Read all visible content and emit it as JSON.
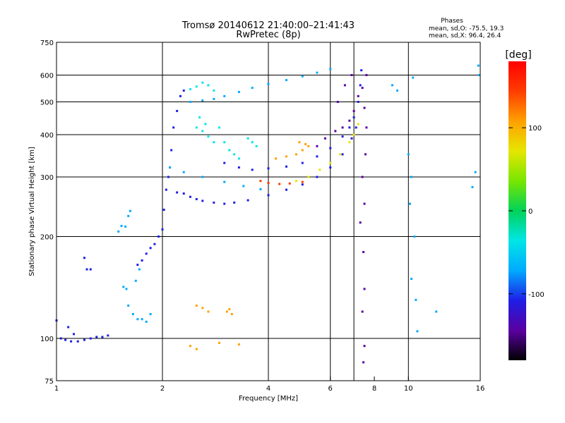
{
  "header": {
    "title": "Tromsø 20140612 21:40:00–21:41:43",
    "subtitle": "RwPretec (8p)",
    "stats_heading": "Phases",
    "stats_line1": "mean, sd,O:  -75.5, 19.3",
    "stats_line2": "mean, sd,X:  96.4, 26.4"
  },
  "chart_data": {
    "type": "scatter",
    "xlabel": "Frequency [MHz]",
    "ylabel": "Stationary phase Virtual Height [km]",
    "x_scale": "log",
    "y_scale": "log",
    "xlim": [
      1,
      16
    ],
    "ylim": [
      75,
      750
    ],
    "x_ticks": [
      1,
      2,
      4,
      6,
      8,
      10,
      16
    ],
    "x_gridlines": [
      2,
      4,
      6,
      7,
      10
    ],
    "y_ticks": [
      75,
      100,
      200,
      300,
      400,
      500,
      600,
      750
    ],
    "y_gridlines": [
      100,
      200,
      300,
      400,
      500,
      600
    ],
    "grid": true,
    "colorbar": {
      "label": "[deg]",
      "range": [
        -180,
        180
      ],
      "ticks": [
        100,
        0,
        -100
      ],
      "colors": [
        "#000000",
        "#5a00a0",
        "#1e1ee6",
        "#00aaff",
        "#00e6e6",
        "#00d25a",
        "#78e600",
        "#e6e600",
        "#ffa000",
        "#ff3c00",
        "#ff0000"
      ]
    },
    "series": [
      {
        "points": [
          [
            1.0,
            113
          ],
          [
            1.03,
            100
          ],
          [
            1.06,
            99
          ],
          [
            1.1,
            98
          ],
          [
            1.15,
            98
          ],
          [
            1.2,
            99
          ],
          [
            1.25,
            100
          ],
          [
            1.3,
            101
          ],
          [
            1.35,
            101
          ],
          [
            1.4,
            102
          ],
          [
            1.08,
            108
          ],
          [
            1.12,
            103
          ],
          [
            1.2,
            173
          ],
          [
            1.22,
            160
          ],
          [
            1.25,
            160
          ]
        ],
        "phase": -120
      },
      {
        "points": [
          [
            1.5,
            207
          ],
          [
            1.53,
            215
          ],
          [
            1.57,
            214
          ],
          [
            1.6,
            230
          ],
          [
            1.62,
            238
          ],
          [
            1.55,
            142
          ],
          [
            1.6,
            125
          ],
          [
            1.65,
            118
          ],
          [
            1.7,
            114
          ],
          [
            1.75,
            114
          ],
          [
            1.8,
            112
          ],
          [
            1.85,
            118
          ],
          [
            1.58,
            140
          ],
          [
            1.68,
            148
          ],
          [
            1.72,
            160
          ]
        ],
        "phase": -70
      },
      {
        "points": [
          [
            1.7,
            165
          ],
          [
            1.75,
            170
          ],
          [
            1.8,
            178
          ],
          [
            1.85,
            185
          ],
          [
            1.9,
            190
          ],
          [
            1.95,
            200
          ],
          [
            2.0,
            210
          ],
          [
            2.02,
            240
          ],
          [
            2.05,
            275
          ],
          [
            2.08,
            300
          ],
          [
            2.1,
            320
          ],
          [
            2.12,
            360
          ],
          [
            2.15,
            420
          ],
          [
            2.2,
            470
          ],
          [
            2.25,
            520
          ],
          [
            2.3,
            540
          ]
        ],
        "phase": -110
      },
      {
        "points": [
          [
            2.2,
            270
          ],
          [
            2.3,
            268
          ],
          [
            2.4,
            262
          ],
          [
            2.5,
            258
          ],
          [
            2.6,
            255
          ],
          [
            2.8,
            252
          ],
          [
            3.0,
            250
          ],
          [
            3.2,
            252
          ],
          [
            3.5,
            256
          ],
          [
            4.0,
            265
          ],
          [
            4.5,
            275
          ],
          [
            5.0,
            285
          ],
          [
            5.5,
            300
          ],
          [
            6.0,
            320
          ],
          [
            6.5,
            350
          ],
          [
            6.9,
            390
          ],
          [
            7.1,
            420
          ]
        ],
        "phase": -100
      },
      {
        "points": [
          [
            2.1,
            320
          ],
          [
            2.3,
            310
          ],
          [
            2.6,
            300
          ],
          [
            3.0,
            290
          ],
          [
            3.4,
            282
          ],
          [
            3.8,
            276
          ]
        ],
        "phase": -80
      },
      {
        "points": [
          [
            3.0,
            330
          ],
          [
            3.3,
            320
          ],
          [
            3.6,
            315
          ],
          [
            4.0,
            318
          ],
          [
            4.5,
            322
          ],
          [
            5.0,
            330
          ],
          [
            5.5,
            345
          ],
          [
            6.0,
            365
          ],
          [
            6.5,
            395
          ],
          [
            6.8,
            420
          ],
          [
            7.0,
            450
          ],
          [
            7.2,
            500
          ],
          [
            7.3,
            560
          ],
          [
            7.35,
            620
          ]
        ],
        "phase": -105
      },
      {
        "points": [
          [
            3.8,
            292
          ],
          [
            4.0,
            288
          ],
          [
            4.3,
            286
          ],
          [
            4.6,
            287
          ],
          [
            5.0,
            290
          ]
        ],
        "phase": 140
      },
      {
        "points": [
          [
            4.8,
            292
          ],
          [
            5.2,
            300
          ],
          [
            5.6,
            315
          ],
          [
            6.0,
            330
          ],
          [
            6.4,
            350
          ],
          [
            6.8,
            380
          ],
          [
            7.0,
            400
          ],
          [
            7.2,
            430
          ]
        ],
        "phase": 70
      },
      {
        "points": [
          [
            2.4,
            500
          ],
          [
            2.6,
            505
          ],
          [
            2.8,
            510
          ],
          [
            3.0,
            520
          ],
          [
            3.3,
            535
          ],
          [
            3.6,
            550
          ],
          [
            4.0,
            565
          ],
          [
            4.5,
            580
          ],
          [
            5.0,
            595
          ],
          [
            5.5,
            610
          ],
          [
            6.0,
            625
          ]
        ],
        "phase": -60
      },
      {
        "points": [
          [
            2.4,
            545
          ],
          [
            2.5,
            555
          ],
          [
            2.6,
            570
          ],
          [
            2.7,
            560
          ],
          [
            2.8,
            540
          ],
          [
            2.5,
            420
          ],
          [
            2.6,
            410
          ],
          [
            2.7,
            395
          ],
          [
            2.8,
            380
          ],
          [
            2.55,
            450
          ],
          [
            2.65,
            430
          ]
        ],
        "phase": -45
      },
      {
        "points": [
          [
            2.9,
            420
          ],
          [
            3.0,
            380
          ],
          [
            3.1,
            360
          ],
          [
            3.2,
            350
          ],
          [
            3.3,
            340
          ],
          [
            3.5,
            390
          ],
          [
            3.6,
            380
          ],
          [
            3.7,
            370
          ]
        ],
        "phase": -35
      },
      {
        "points": [
          [
            4.2,
            340
          ],
          [
            4.5,
            345
          ],
          [
            4.8,
            350
          ],
          [
            5.0,
            360
          ],
          [
            5.2,
            370
          ],
          [
            4.9,
            380
          ],
          [
            5.1,
            375
          ]
        ],
        "phase": 90
      },
      {
        "points": [
          [
            5.5,
            370
          ],
          [
            5.8,
            390
          ],
          [
            6.2,
            410
          ],
          [
            6.5,
            420
          ],
          [
            6.8,
            440
          ],
          [
            7.0,
            470
          ],
          [
            7.2,
            520
          ],
          [
            6.3,
            500
          ],
          [
            6.6,
            560
          ],
          [
            6.9,
            600
          ]
        ],
        "phase": -160
      },
      {
        "points": [
          [
            7.6,
            600
          ],
          [
            7.4,
            550
          ],
          [
            7.5,
            480
          ],
          [
            7.6,
            420
          ],
          [
            7.55,
            350
          ],
          [
            7.4,
            300
          ],
          [
            7.5,
            250
          ],
          [
            7.3,
            220
          ],
          [
            7.45,
            180
          ],
          [
            7.5,
            140
          ],
          [
            7.4,
            120
          ],
          [
            7.5,
            95
          ],
          [
            7.45,
            85
          ]
        ],
        "phase": -130
      },
      {
        "points": [
          [
            9.0,
            560
          ],
          [
            9.3,
            540
          ],
          [
            10.3,
            590
          ],
          [
            10.0,
            350
          ],
          [
            10.2,
            300
          ],
          [
            10.1,
            250
          ],
          [
            10.4,
            200
          ],
          [
            10.2,
            150
          ],
          [
            10.5,
            130
          ],
          [
            10.6,
            105
          ],
          [
            12.0,
            120
          ],
          [
            15.2,
            280
          ],
          [
            15.5,
            310
          ],
          [
            15.8,
            640
          ],
          [
            15.9,
            600
          ]
        ],
        "phase": -90
      },
      {
        "points": [
          [
            3.05,
            120
          ],
          [
            3.1,
            122
          ],
          [
            3.15,
            118
          ],
          [
            2.5,
            125
          ],
          [
            2.6,
            123
          ],
          [
            2.7,
            120
          ],
          [
            2.4,
            95
          ],
          [
            2.5,
            93
          ],
          [
            2.9,
            97
          ],
          [
            3.3,
            96
          ]
        ],
        "phase": 120
      }
    ]
  }
}
